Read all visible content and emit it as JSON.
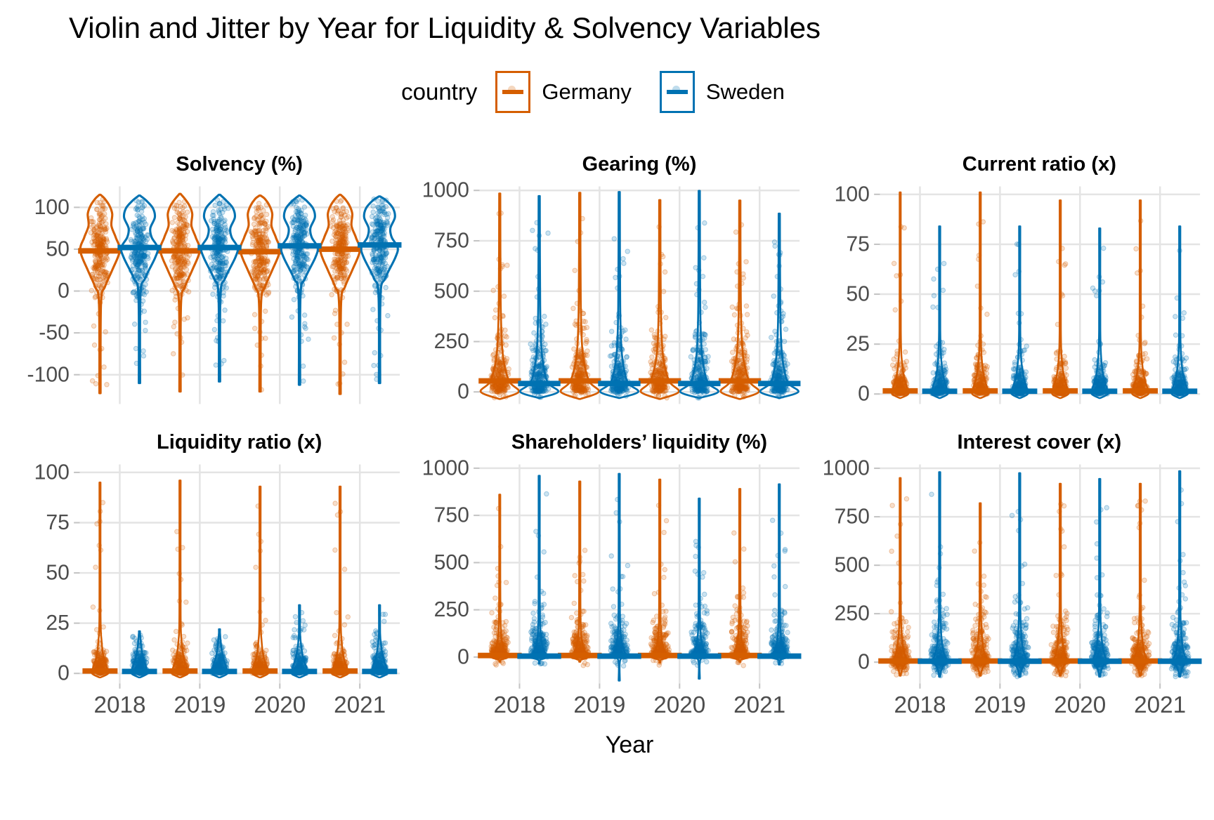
{
  "title": "Violin and Jitter by Year for Liquidity & Solvency Variables",
  "chart_data": {
    "type": "violin-jitter",
    "xlabel": "Year",
    "x_categories": [
      "2018",
      "2019",
      "2020",
      "2021"
    ],
    "grid_color": "#E4E4E4",
    "tick_color": "#C4C4C4",
    "axis_text_color": "#4D4D4D",
    "legend": {
      "title": "country",
      "entries": [
        {
          "label": "Germany",
          "color": "#D55E00"
        },
        {
          "label": "Sweden",
          "color": "#0072B2"
        }
      ]
    },
    "facets": [
      {
        "title": "Solvency (%)",
        "ylim": [
          -135,
          125
        ],
        "yticks": [
          -100,
          -50,
          0,
          50,
          100
        ],
        "maxw": 27,
        "bar_halfwidth": 30,
        "outline_width": 3,
        "jitter": {
          "kind": "normal",
          "sd": 30,
          "clip": [
            -8,
            110
          ],
          "n": 250,
          "tail_n": 13,
          "jw": 13
        },
        "series": [
          {
            "country": "Germany",
            "color": "#D55E00",
            "profile": [
              [
                -15,
                0.05
              ],
              [
                5,
                0.25
              ],
              [
                25,
                0.62
              ],
              [
                48,
                1.0
              ],
              [
                64,
                0.8
              ],
              [
                78,
                0.58
              ],
              [
                92,
                0.62
              ],
              [
                102,
                0.48
              ],
              [
                110,
                0.25
              ]
            ],
            "years": [
              {
                "median": 48,
                "max": 115,
                "tail_lo": -122
              },
              {
                "median": 48,
                "max": 116,
                "tail_lo": -120
              },
              {
                "median": 47,
                "max": 114,
                "tail_lo": -120
              },
              {
                "median": 50,
                "max": 115,
                "tail_lo": -123
              }
            ]
          },
          {
            "country": "Sweden",
            "color": "#0072B2",
            "profile": [
              [
                -5,
                0.05
              ],
              [
                15,
                0.28
              ],
              [
                40,
                0.8
              ],
              [
                52,
                0.92
              ],
              [
                64,
                0.62
              ],
              [
                75,
                0.55
              ],
              [
                88,
                0.78
              ],
              [
                99,
                0.68
              ],
              [
                108,
                0.35
              ]
            ],
            "years": [
              {
                "median": 52,
                "max": 114,
                "tail_lo": -110
              },
              {
                "median": 52,
                "max": 115,
                "tail_lo": -108
              },
              {
                "median": 54,
                "max": 114,
                "tail_lo": -112
              },
              {
                "median": 55,
                "max": 113,
                "tail_lo": -110
              }
            ]
          }
        ]
      },
      {
        "title": "Gearing (%)",
        "ylim": [
          -60,
          1020
        ],
        "yticks": [
          0,
          250,
          500,
          750,
          1000
        ],
        "maxw": 26,
        "bar_halfwidth": 29,
        "outline_width": 2.6,
        "jitter": {
          "kind": "decay",
          "scale": 95,
          "n": 250,
          "hi_n": 9,
          "below_n": 5,
          "below_lo": -30,
          "jw": 13
        },
        "series": [
          {
            "country": "Germany",
            "color": "#D55E00",
            "profile": [
              [
                -35,
                0.08
              ],
              [
                0,
                1.0
              ],
              [
                45,
                0.55
              ],
              [
                110,
                0.3
              ],
              [
                220,
                0.13
              ],
              [
                450,
                0.05
              ]
            ],
            "years": [
              {
                "median": 55,
                "max": 985,
                "tail_lo": -35
              },
              {
                "median": 55,
                "max": 988,
                "tail_lo": -35
              },
              {
                "median": 55,
                "max": 952,
                "tail_lo": -35
              },
              {
                "median": 55,
                "max": 950,
                "tail_lo": -35
              }
            ]
          },
          {
            "country": "Sweden",
            "color": "#0072B2",
            "profile": [
              [
                -30,
                0.08
              ],
              [
                0,
                1.0
              ],
              [
                40,
                0.5
              ],
              [
                100,
                0.28
              ],
              [
                210,
                0.12
              ],
              [
                430,
                0.05
              ]
            ],
            "years": [
              {
                "median": 42,
                "max": 972,
                "tail_lo": -30
              },
              {
                "median": 42,
                "max": 992,
                "tail_lo": -30
              },
              {
                "median": 42,
                "max": 998,
                "tail_lo": -30
              },
              {
                "median": 42,
                "max": 885,
                "tail_lo": -30
              }
            ]
          }
        ]
      },
      {
        "title": "Current ratio (x)",
        "ylim": [
          -5,
          104
        ],
        "yticks": [
          0,
          25,
          50,
          75,
          100
        ],
        "maxw": 11,
        "bar_halfwidth": 24,
        "outline_width": 2.4,
        "jitter": {
          "kind": "decay",
          "scale": 5.5,
          "n": 240,
          "hi_n": 7,
          "below_n": 0,
          "below_lo": 0,
          "jw": 11
        },
        "series": [
          {
            "country": "Germany",
            "color": "#D55E00",
            "profile": [
              [
                -2,
                0.12
              ],
              [
                0,
                1.0
              ],
              [
                3,
                0.88
              ],
              [
                8,
                0.5
              ],
              [
                16,
                0.22
              ],
              [
                32,
                0.08
              ]
            ],
            "years": [
              {
                "median": 1.6,
                "max": 101,
                "tail_lo": -2
              },
              {
                "median": 1.6,
                "max": 101,
                "tail_lo": -2
              },
              {
                "median": 1.6,
                "max": 97,
                "tail_lo": -2
              },
              {
                "median": 1.6,
                "max": 97,
                "tail_lo": -2
              }
            ]
          },
          {
            "country": "Sweden",
            "color": "#0072B2",
            "profile": [
              [
                -2,
                0.12
              ],
              [
                0,
                1.0
              ],
              [
                3,
                0.88
              ],
              [
                8,
                0.5
              ],
              [
                16,
                0.22
              ],
              [
                32,
                0.08
              ]
            ],
            "years": [
              {
                "median": 1.4,
                "max": 84,
                "tail_lo": -2
              },
              {
                "median": 1.4,
                "max": 84,
                "tail_lo": -2
              },
              {
                "median": 1.4,
                "max": 83,
                "tail_lo": -2
              },
              {
                "median": 1.4,
                "max": 84,
                "tail_lo": -2
              }
            ]
          }
        ]
      },
      {
        "title": "Liquidity ratio (x)",
        "ylim": [
          -5,
          104
        ],
        "yticks": [
          0,
          25,
          50,
          75,
          100
        ],
        "maxw": 11,
        "bar_halfwidth": 24,
        "outline_width": 2.4,
        "jitter": {
          "kind": "decay",
          "scale": 4.5,
          "n": 240,
          "hi_n": 7,
          "below_n": 0,
          "below_lo": 0,
          "jw": 11
        },
        "series": [
          {
            "country": "Germany",
            "color": "#D55E00",
            "profile": [
              [
                -2,
                0.12
              ],
              [
                0,
                1.0
              ],
              [
                3,
                0.85
              ],
              [
                8,
                0.45
              ],
              [
                16,
                0.2
              ],
              [
                30,
                0.07
              ]
            ],
            "years": [
              {
                "median": 1.2,
                "max": 95,
                "tail_lo": -2
              },
              {
                "median": 1.2,
                "max": 96,
                "tail_lo": -2
              },
              {
                "median": 1.2,
                "max": 93,
                "tail_lo": -2
              },
              {
                "median": 1.2,
                "max": 93,
                "tail_lo": -2
              }
            ]
          },
          {
            "country": "Sweden",
            "color": "#0072B2",
            "profile": [
              [
                -2,
                0.12
              ],
              [
                0,
                1.0
              ],
              [
                3,
                0.85
              ],
              [
                8,
                0.45
              ],
              [
                14,
                0.2
              ],
              [
                20,
                0.08
              ]
            ],
            "years": [
              {
                "median": 1.0,
                "max": 21,
                "tail_lo": -2
              },
              {
                "median": 1.0,
                "max": 22,
                "tail_lo": -2
              },
              {
                "median": 1.0,
                "max": 34,
                "tail_lo": -2
              },
              {
                "median": 1.0,
                "max": 34,
                "tail_lo": -2
              }
            ]
          }
        ]
      },
      {
        "title": "Shareholders’ liquidity (%)",
        "ylim": [
          -140,
          1020
        ],
        "yticks": [
          0,
          250,
          500,
          750,
          1000
        ],
        "maxw": 12,
        "bar_halfwidth": 30,
        "outline_width": 2.4,
        "jitter": {
          "kind": "decay",
          "scale": 60,
          "n": 260,
          "hi_n": 8,
          "below_n": 6,
          "below_lo": -50,
          "jw": 13
        },
        "series": [
          {
            "country": "Germany",
            "color": "#D55E00",
            "profile": [
              [
                -15,
                0.12
              ],
              [
                0,
                1.0
              ],
              [
                20,
                0.7
              ],
              [
                60,
                0.35
              ],
              [
                150,
                0.12
              ],
              [
                400,
                0.04
              ]
            ],
            "years": [
              {
                "median": 8,
                "max": 860,
                "tail_lo": -25
              },
              {
                "median": 8,
                "max": 930,
                "tail_lo": -25
              },
              {
                "median": 8,
                "max": 940,
                "tail_lo": -30
              },
              {
                "median": 8,
                "max": 890,
                "tail_lo": -25
              }
            ]
          },
          {
            "country": "Sweden",
            "color": "#0072B2",
            "profile": [
              [
                -15,
                0.12
              ],
              [
                0,
                1.0
              ],
              [
                20,
                0.7
              ],
              [
                60,
                0.35
              ],
              [
                150,
                0.12
              ],
              [
                400,
                0.04
              ]
            ],
            "years": [
              {
                "median": 5,
                "max": 960,
                "tail_lo": -35
              },
              {
                "median": 5,
                "max": 970,
                "tail_lo": -125
              },
              {
                "median": 5,
                "max": 840,
                "tail_lo": -115
              },
              {
                "median": 5,
                "max": 915,
                "tail_lo": -40
              }
            ]
          }
        ]
      },
      {
        "title": "Interest cover (x)",
        "ylim": [
          -110,
          1020
        ],
        "yticks": [
          0,
          250,
          500,
          750,
          1000
        ],
        "maxw": 13,
        "bar_halfwidth": 30,
        "outline_width": 2.4,
        "jitter": {
          "kind": "decay2",
          "scale": 70,
          "scale_dn": 26,
          "n": 270,
          "hi_n": 8,
          "below_n": 0,
          "below_lo": 0,
          "jw": 13
        },
        "series": [
          {
            "country": "Germany",
            "color": "#D55E00",
            "profile": [
              [
                -45,
                0.15
              ],
              [
                -10,
                0.5
              ],
              [
                0,
                1.0
              ],
              [
                25,
                0.6
              ],
              [
                80,
                0.3
              ],
              [
                200,
                0.1
              ],
              [
                450,
                0.04
              ]
            ],
            "years": [
              {
                "median": 6,
                "max": 950,
                "tail_lo": -70
              },
              {
                "median": 6,
                "max": 820,
                "tail_lo": -70
              },
              {
                "median": 6,
                "max": 920,
                "tail_lo": -70
              },
              {
                "median": 6,
                "max": 920,
                "tail_lo": -70
              }
            ]
          },
          {
            "country": "Sweden",
            "color": "#0072B2",
            "profile": [
              [
                -45,
                0.15
              ],
              [
                -10,
                0.5
              ],
              [
                0,
                1.0
              ],
              [
                25,
                0.6
              ],
              [
                80,
                0.3
              ],
              [
                200,
                0.1
              ],
              [
                450,
                0.04
              ]
            ],
            "years": [
              {
                "median": 5,
                "max": 980,
                "tail_lo": -75
              },
              {
                "median": 5,
                "max": 975,
                "tail_lo": -75
              },
              {
                "median": 5,
                "max": 945,
                "tail_lo": -75
              },
              {
                "median": 5,
                "max": 985,
                "tail_lo": -75
              }
            ]
          }
        ]
      }
    ]
  }
}
